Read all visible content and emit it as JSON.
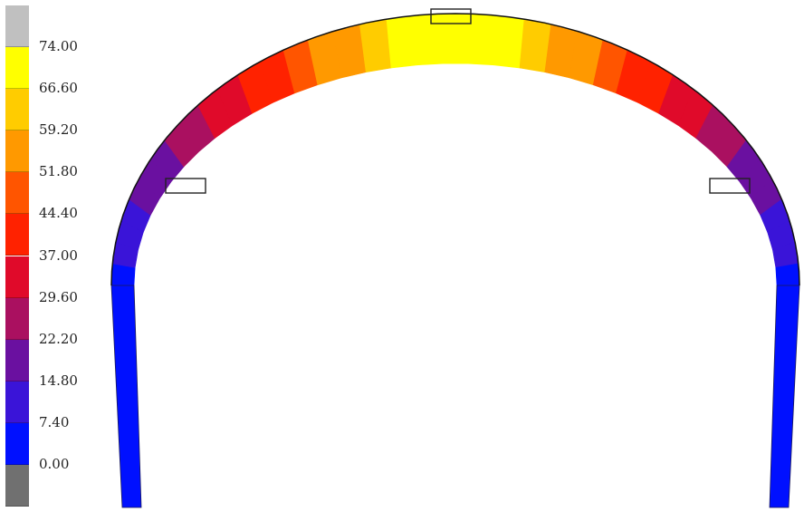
{
  "legend": {
    "labels": [
      "74.00",
      "66.60",
      "59.20",
      "51.80",
      "44.40",
      "37.00",
      "29.60",
      "22.20",
      "14.80",
      "7.40",
      "0.00"
    ],
    "bands": [
      {
        "color": "#c0c0c0"
      },
      {
        "color": "#ffff00"
      },
      {
        "color": "#ffcc00"
      },
      {
        "color": "#ff9900"
      },
      {
        "color": "#ff5500"
      },
      {
        "color": "#ff2200"
      },
      {
        "color": "#e00a2a"
      },
      {
        "color": "#aa1060"
      },
      {
        "color": "#6a10a0"
      },
      {
        "color": "#3a14d8"
      },
      {
        "color": "#0010ff"
      },
      {
        "color": "#707070"
      }
    ]
  },
  "contour": {
    "min": 0.0,
    "max": 74.0,
    "values_left_to_right": [
      5,
      8,
      11,
      14,
      17,
      20,
      22,
      24,
      27,
      30,
      34,
      38,
      42,
      47,
      52,
      57,
      62,
      67,
      71,
      72,
      71,
      67,
      62,
      57,
      52,
      47,
      42,
      38,
      34,
      30,
      27,
      24,
      22,
      20,
      17,
      14,
      11,
      8,
      5
    ]
  }
}
